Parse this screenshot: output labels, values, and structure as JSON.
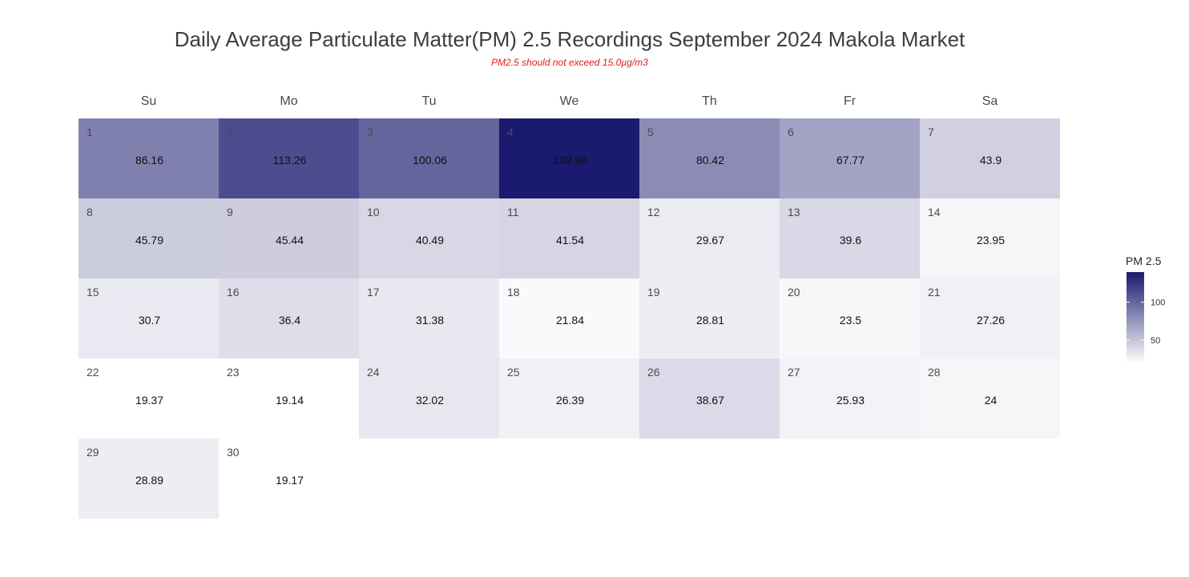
{
  "chart_data": {
    "type": "heatmap",
    "title": "Daily Average Particulate Matter(PM) 2.5 Recordings September 2024 Makola Market",
    "subtitle": "PM2.5 should not exceed 15.0µg/m3",
    "weekdays": [
      "Su",
      "Mo",
      "Tu",
      "We",
      "Th",
      "Fr",
      "Sa"
    ],
    "first_weekday_index": 0,
    "days": [
      {
        "day": 1,
        "value": 86.16
      },
      {
        "day": 2,
        "value": 113.26
      },
      {
        "day": 3,
        "value": 100.06
      },
      {
        "day": 4,
        "value": 139.86
      },
      {
        "day": 5,
        "value": 80.42
      },
      {
        "day": 6,
        "value": 67.77
      },
      {
        "day": 7,
        "value": 43.9
      },
      {
        "day": 8,
        "value": 45.79
      },
      {
        "day": 9,
        "value": 45.44
      },
      {
        "day": 10,
        "value": 40.49
      },
      {
        "day": 11,
        "value": 41.54
      },
      {
        "day": 12,
        "value": 29.67
      },
      {
        "day": 13,
        "value": 39.6
      },
      {
        "day": 14,
        "value": 23.95
      },
      {
        "day": 15,
        "value": 30.7
      },
      {
        "day": 16,
        "value": 36.4
      },
      {
        "day": 17,
        "value": 31.38
      },
      {
        "day": 18,
        "value": 21.84
      },
      {
        "day": 19,
        "value": 28.81
      },
      {
        "day": 20,
        "value": 23.5
      },
      {
        "day": 21,
        "value": 27.26
      },
      {
        "day": 22,
        "value": 19.37
      },
      {
        "day": 23,
        "value": 19.14
      },
      {
        "day": 24,
        "value": 32.02
      },
      {
        "day": 25,
        "value": 26.39
      },
      {
        "day": 26,
        "value": 38.67
      },
      {
        "day": 27,
        "value": 25.93
      },
      {
        "day": 28,
        "value": 24
      },
      {
        "day": 29,
        "value": 28.89
      },
      {
        "day": 30,
        "value": 19.17
      }
    ],
    "legend": {
      "title": "PM 2.5",
      "ticks": [
        50,
        100
      ],
      "range": [
        19.14,
        139.86
      ],
      "color_low": "#ffffff",
      "color_high": "#1a1a6e"
    }
  }
}
